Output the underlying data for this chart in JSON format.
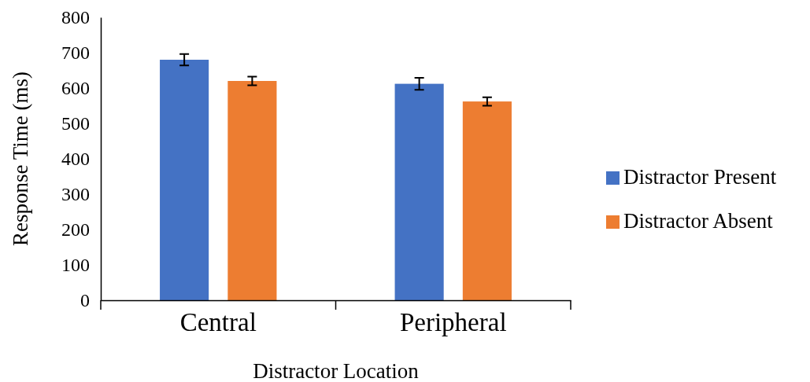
{
  "chart_data": {
    "type": "bar",
    "xlabel": "Distractor Location",
    "ylabel": "Response Time (ms)",
    "categories": [
      "Central",
      "Peripheral"
    ],
    "series": [
      {
        "name": "Distractor Present",
        "color": "#4472c4",
        "values": [
          680,
          612
        ],
        "errors": [
          16,
          17
        ]
      },
      {
        "name": "Distractor Absent",
        "color": "#ed7d31",
        "values": [
          620,
          562
        ],
        "errors": [
          12,
          12
        ]
      }
    ],
    "ylim": [
      0,
      800
    ],
    "yticks": [
      0,
      100,
      200,
      300,
      400,
      500,
      600,
      700,
      800
    ],
    "grid": false,
    "legend": "right"
  }
}
